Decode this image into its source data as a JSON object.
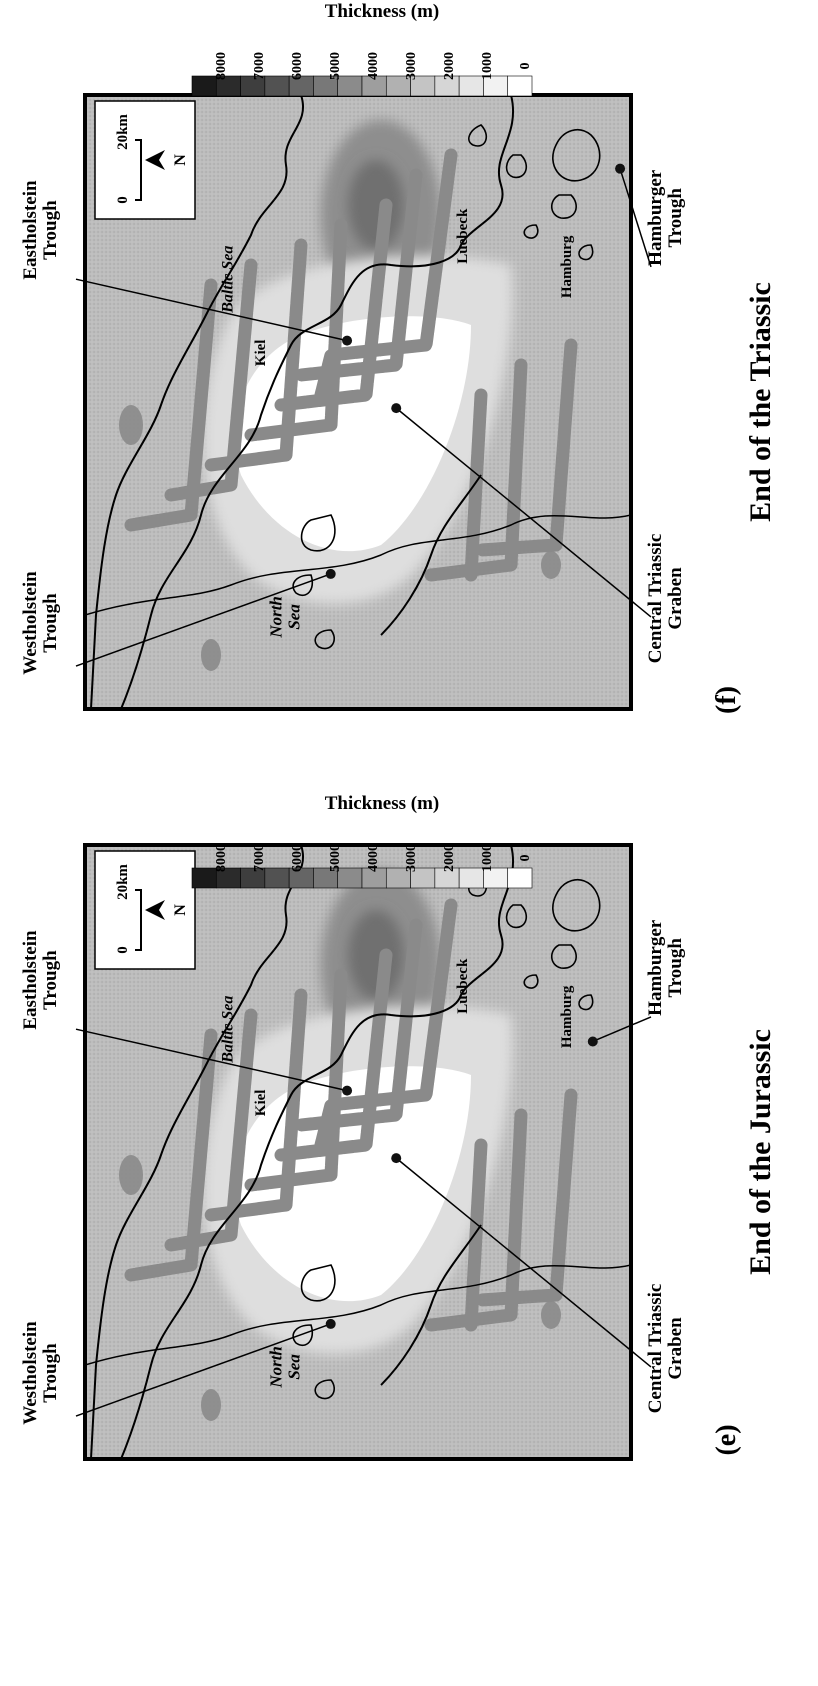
{
  "legend": {
    "title": "Thickness (m)",
    "ticks": [
      "8000",
      "7000",
      "6000",
      "5000",
      "4000",
      "3000",
      "2000",
      "1000",
      "0"
    ],
    "shades": [
      "#1a1a1a",
      "#2b2b2b",
      "#3e3e3e",
      "#525252",
      "#656565",
      "#787878",
      "#8b8b8b",
      "#9e9e9e",
      "#b1b1b1",
      "#c4c4c4",
      "#d6d6d6",
      "#e6e6e6",
      "#f2f2f2",
      "#ffffff"
    ]
  },
  "panels": [
    {
      "letter": "(f)",
      "title": "End of the Triassic",
      "labels": {
        "eastholstein": [
          "Eastholstein",
          "Trough"
        ],
        "westholstein": [
          "Westholstein",
          "Trough"
        ],
        "central": [
          "Central Triassic",
          "Graben"
        ],
        "hamburger": [
          "Hamburger",
          "Trough"
        ],
        "baltic": "Baltic Sea",
        "north": [
          "North",
          "Sea"
        ],
        "kiel": "Kiel",
        "luebeck": "Luebeck",
        "hamburg": "Hamburg"
      },
      "scale": {
        "zero": "0",
        "dist": "20km",
        "north": "N"
      }
    },
    {
      "letter": "(e)",
      "title": "End of the Jurassic",
      "labels": {
        "eastholstein": [
          "Eastholstein",
          "Trough"
        ],
        "westholstein": [
          "Westholstein",
          "Trough"
        ],
        "central": [
          "Central Triassic",
          "Graben"
        ],
        "hamburger": [
          "Hamburger",
          "Trough"
        ],
        "baltic": "Baltic Sea",
        "north": [
          "North",
          "Sea"
        ],
        "kiel": "Kiel",
        "luebeck": "Luebeck",
        "hamburg": "Hamburg"
      },
      "scale": {
        "zero": "0",
        "dist": "20km",
        "north": "N"
      }
    }
  ],
  "colors": {
    "background_gray": "#b9b9b9",
    "light_zone": "#dcdcdc",
    "white_zone": "#ffffff",
    "graben_band": "#8a8a8a",
    "basin_dark": "#7a7a7a"
  }
}
